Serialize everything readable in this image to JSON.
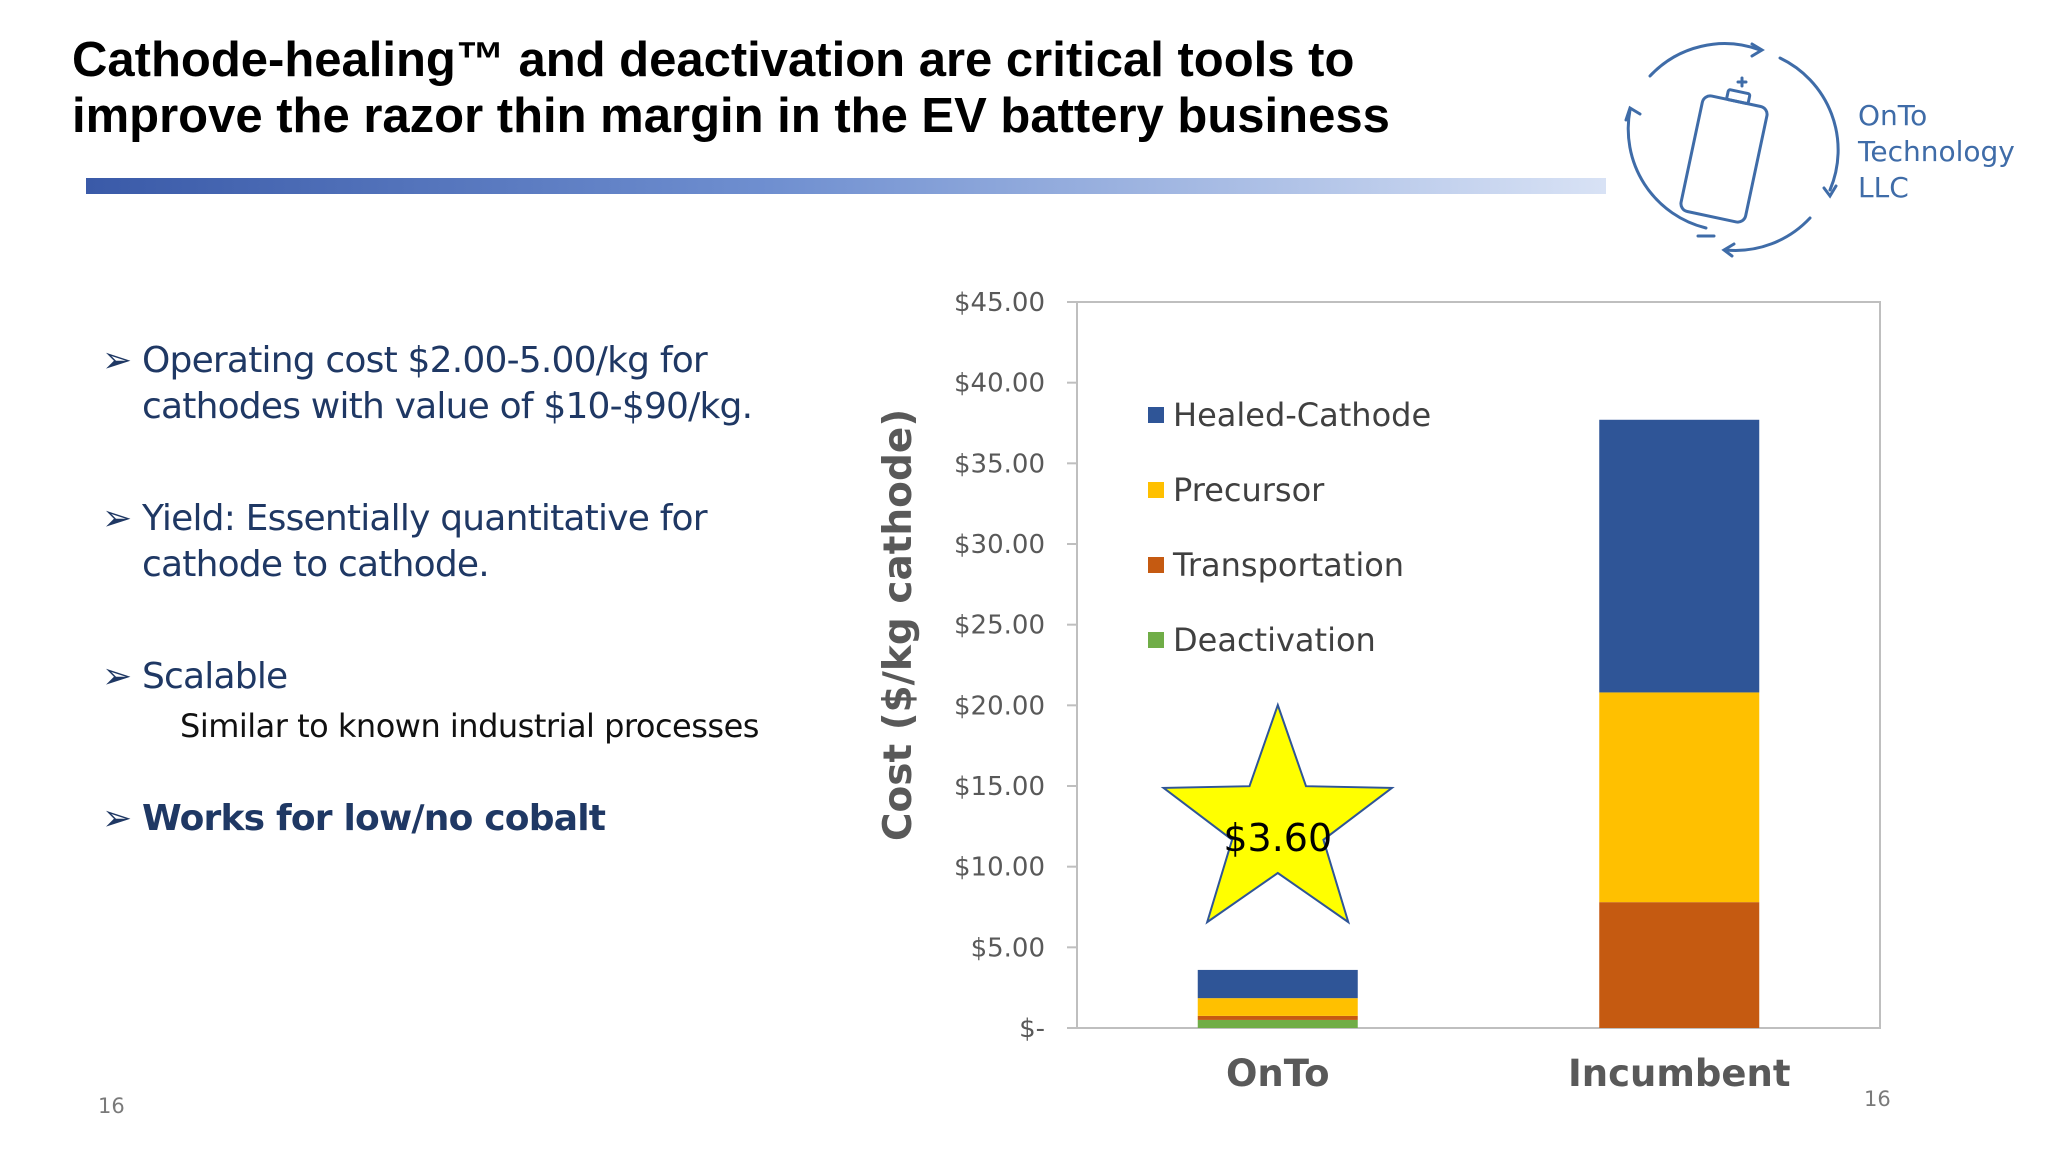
{
  "title": {
    "line1": "Cathode-healing™ and deactivation are critical tools to",
    "line2": "improve the razor thin margin in the EV battery business"
  },
  "logo": {
    "lines": [
      "OnTo",
      "Technology",
      "LLC"
    ],
    "icon": "recycling-battery-icon"
  },
  "bullets": [
    {
      "text_lines": [
        "Operating cost $2.00-5.00/kg for",
        "cathodes with value of $10-$90/kg."
      ]
    },
    {
      "text_lines": [
        "Yield: Essentially quantitative for",
        "cathode to cathode."
      ]
    },
    {
      "text_lines": [
        "Scalable"
      ],
      "sub": "Similar to known industrial processes"
    },
    {
      "text_lines": [
        "Works for low/no cobalt"
      ],
      "bold": true
    }
  ],
  "bullet_icon": "arrowhead-bullet-icon",
  "page_number_left": "16",
  "page_number_right": "16",
  "colors": {
    "title_rule": "#3a5aa8",
    "bullet_text": "#1f3864",
    "logo": "#3f6ca8",
    "star_fill": "#ffff00"
  },
  "chart_data": {
    "type": "bar",
    "stacked": true,
    "ylabel": "Cost ($/kg cathode)",
    "ylim": [
      0,
      45
    ],
    "ytick_labels": [
      "$-",
      "$5.00",
      "$10.00",
      "$15.00",
      "$20.00",
      "$25.00",
      "$30.00",
      "$35.00",
      "$40.00",
      "$45.00"
    ],
    "categories": [
      "OnTo",
      "Incumbent"
    ],
    "series": [
      {
        "name": "Deactivation",
        "color": "#70ad47",
        "values": [
          0.5,
          0
        ]
      },
      {
        "name": "Transportation",
        "color": "#c55a11",
        "values": [
          0.25,
          7.8
        ]
      },
      {
        "name": "Precursor",
        "color": "#ffc000",
        "values": [
          1.1,
          13.0
        ]
      },
      {
        "name": "Healed-Cathode",
        "color": "#2f5597",
        "values": [
          1.75,
          16.9
        ]
      }
    ],
    "legend_order": [
      "Healed-Cathode",
      "Precursor",
      "Transportation",
      "Deactivation"
    ],
    "legend_position": "top-left inside plot",
    "annotation": {
      "text": "$3.60",
      "shape": "star",
      "category": "OnTo"
    },
    "grid": false
  }
}
